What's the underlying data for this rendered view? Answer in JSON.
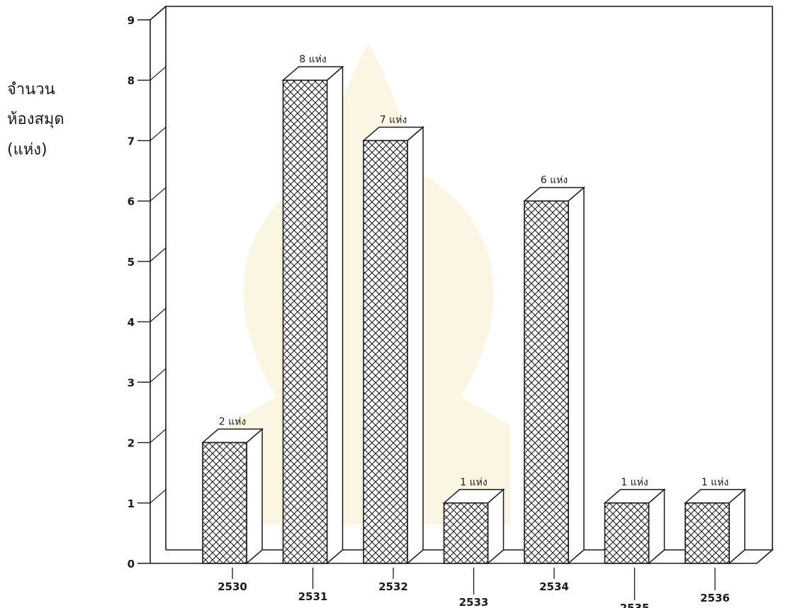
{
  "chart_data": {
    "type": "bar",
    "style": "3d-hatched",
    "y_axis_label_lines": [
      "จำนวน",
      "ห้องสมุด",
      "(แห่ง)"
    ],
    "categories": [
      "2530",
      "2531",
      "2532",
      "2533",
      "2534",
      "2535",
      "2536"
    ],
    "values": [
      2,
      8,
      7,
      1,
      6,
      1,
      1
    ],
    "data_labels": [
      "2 แห่ง",
      "8 แห่ง",
      "7 แห่ง",
      "1 แห่ง",
      "6 แห่ง",
      "1 แห่ง",
      "1 แห่ง"
    ],
    "y_ticks": [
      "0",
      "1",
      "2",
      "3",
      "4",
      "5",
      "6",
      "7",
      "8",
      "9"
    ],
    "ylim": [
      0,
      9
    ],
    "grid": false,
    "legend": "none"
  },
  "colors": {
    "ink": "#1a1a1a",
    "watermark": "#e0a400"
  }
}
